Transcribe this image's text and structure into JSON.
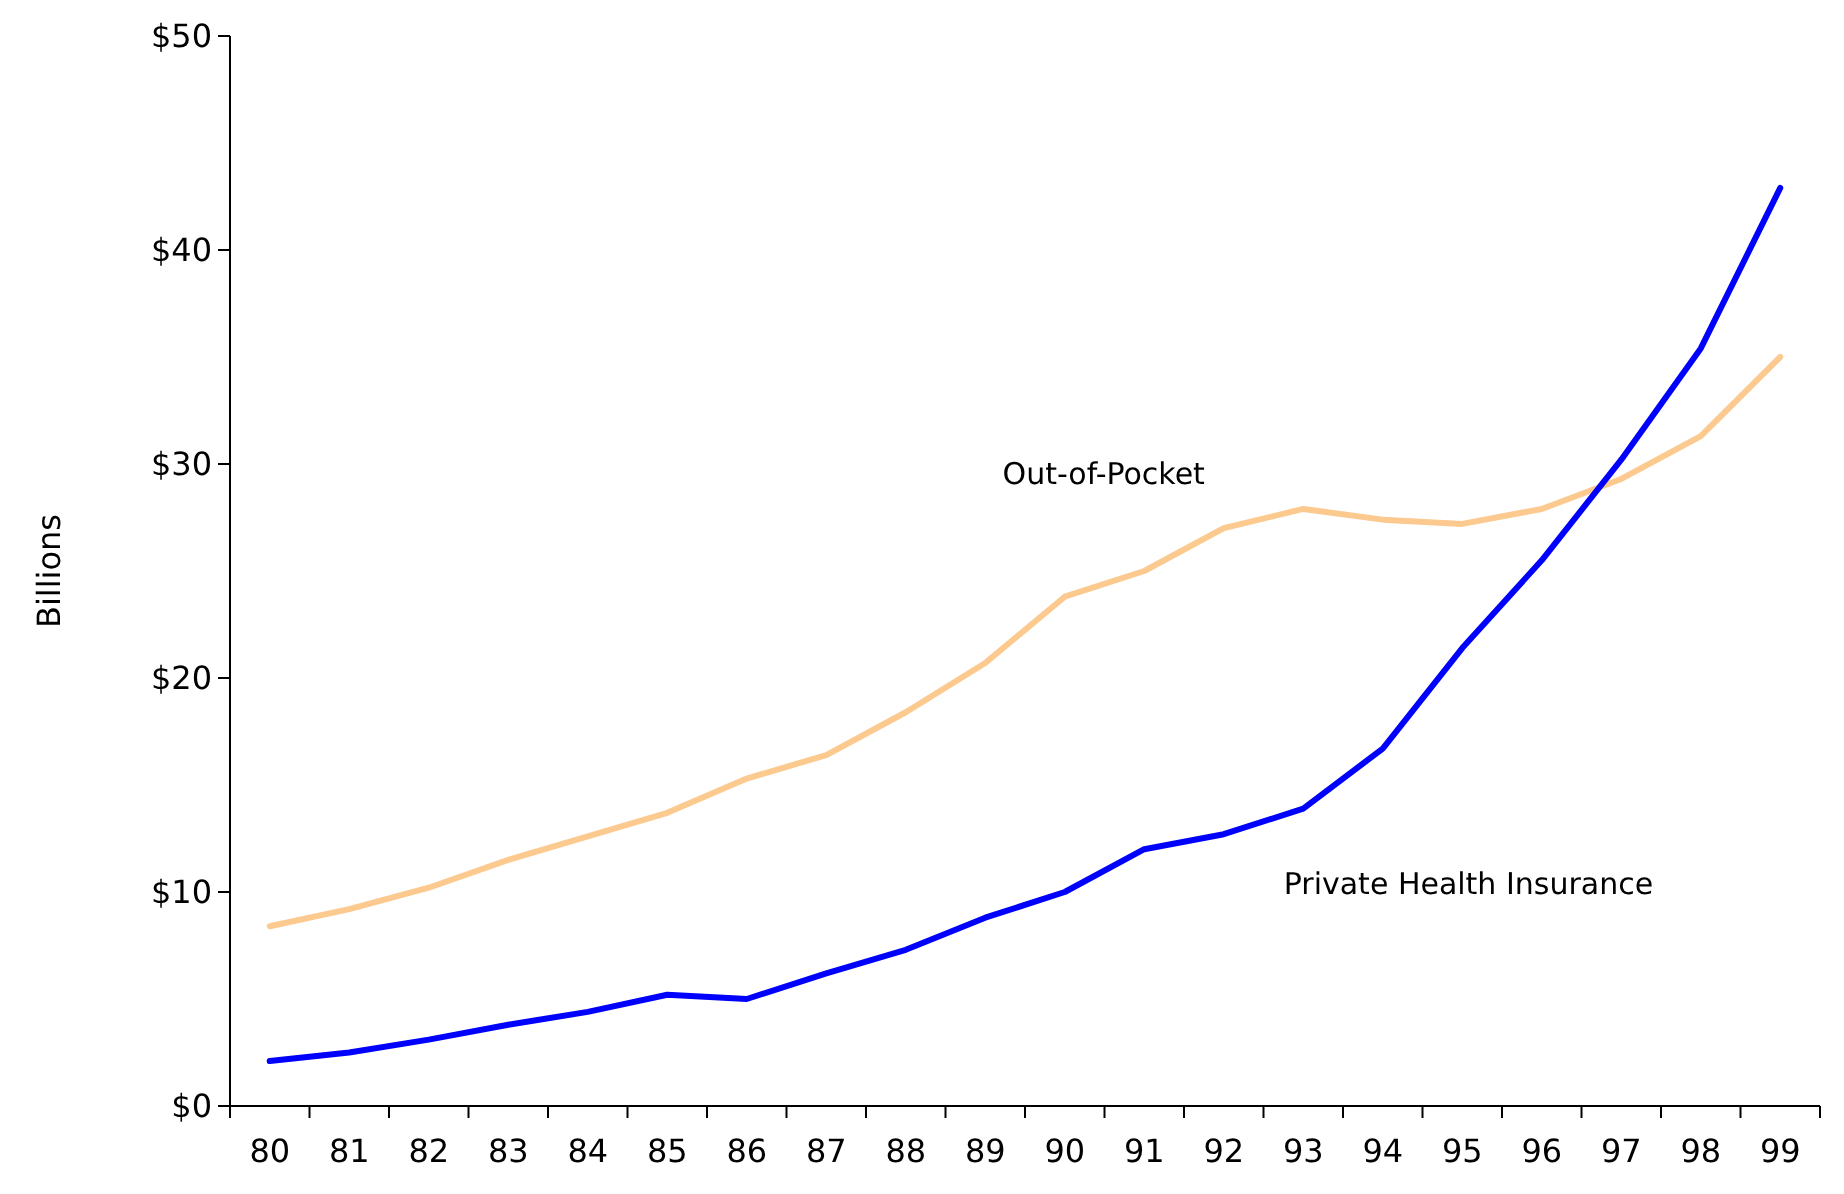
{
  "chart_data": {
    "type": "line",
    "ylabel": "Billions",
    "categories": [
      "80",
      "81",
      "82",
      "83",
      "84",
      "85",
      "86",
      "87",
      "88",
      "89",
      "90",
      "91",
      "92",
      "93",
      "94",
      "95",
      "96",
      "97",
      "98",
      "99"
    ],
    "series": [
      {
        "name": "Out-of-Pocket",
        "color": "#fcc98f",
        "values": [
          8.4,
          9.2,
          10.2,
          11.5,
          12.6,
          13.7,
          15.3,
          16.4,
          18.4,
          20.7,
          23.8,
          25.0,
          27.0,
          27.9,
          27.4,
          27.2,
          27.9,
          29.3,
          31.3,
          35.0
        ]
      },
      {
        "name": "Private Health Insurance",
        "color": "#0000ff",
        "values": [
          2.1,
          2.5,
          3.1,
          3.8,
          4.4,
          5.2,
          5.0,
          6.2,
          7.3,
          8.8,
          10.0,
          12.0,
          12.7,
          13.9,
          16.7,
          21.4,
          25.5,
          30.2,
          35.4,
          42.9
        ]
      }
    ],
    "ylim": [
      0,
      50
    ],
    "yticks": [
      {
        "value": 0,
        "label": "$0"
      },
      {
        "value": 10,
        "label": "$10"
      },
      {
        "value": 20,
        "label": "$20"
      },
      {
        "value": 30,
        "label": "$30"
      },
      {
        "value": 40,
        "label": "$40"
      },
      {
        "value": 50,
        "label": "$50"
      }
    ],
    "grid": false,
    "legend": false,
    "marker": "none",
    "line_style": "solid"
  }
}
